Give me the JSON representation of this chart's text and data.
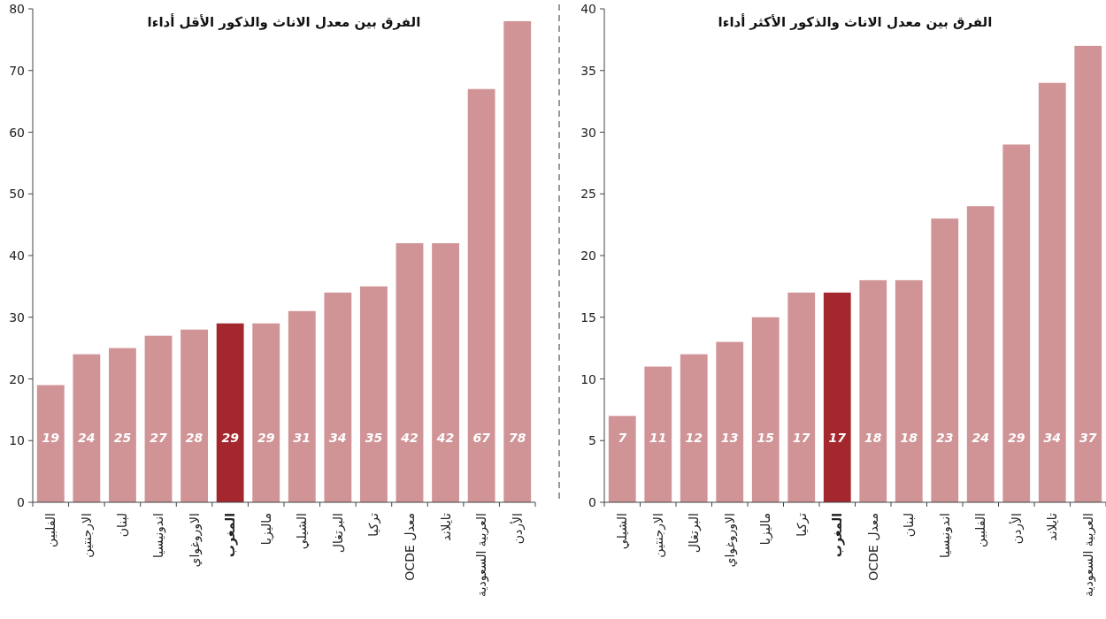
{
  "chart_data": [
    {
      "type": "bar",
      "title": "الفرق بين معدل الاناث والذكور الأقل أداءا",
      "categories": [
        "الفلبين",
        "الارجنتين",
        "لبنان",
        "اندونيسيا",
        "الاوروغواي",
        "المغرب",
        "ماليزيا",
        "الشيلي",
        "البرتغال",
        "تركيا",
        "معدل OCDE",
        "تايلاند",
        "العربية السعودية",
        "الأردن"
      ],
      "values": [
        19,
        24,
        25,
        27,
        28,
        29,
        29,
        31,
        34,
        35,
        42,
        42,
        67,
        78
      ],
      "colors": [
        "#d09497",
        "#d09497",
        "#d09497",
        "#d09497",
        "#d09497",
        "#a4272e",
        "#d09497",
        "#d09497",
        "#d09497",
        "#d09497",
        "#d09497",
        "#d09497",
        "#d09497",
        "#d09497"
      ],
      "ylim": [
        0,
        80
      ],
      "yticks": [
        0,
        10,
        20,
        30,
        40,
        50,
        60,
        70,
        80
      ],
      "data_labels": true,
      "grid": false
    },
    {
      "type": "bar",
      "title": "الفرق بين معدل الاناث والذكور الأكثر أداءا",
      "categories": [
        "الشيلي",
        "الارجنتين",
        "البرتغال",
        "الاوروغواي",
        "ماليزيا",
        "تركيا",
        "المغرب",
        "معدل OCDE",
        "لبنان",
        "اندونيسيا",
        "الفلبين",
        "الأردن",
        "تايلاند",
        "العربية السعودية"
      ],
      "values": [
        7,
        11,
        12,
        13,
        15,
        17,
        17,
        18,
        18,
        23,
        24,
        29,
        34,
        37
      ],
      "colors": [
        "#d09497",
        "#d09497",
        "#d09497",
        "#d09497",
        "#d09497",
        "#d09497",
        "#a4272e",
        "#d09497",
        "#d09497",
        "#d09497",
        "#d09497",
        "#d09497",
        "#d09497",
        "#d09497"
      ],
      "ylim": [
        0,
        40
      ],
      "yticks": [
        0,
        5,
        10,
        15,
        20,
        25,
        30,
        35,
        40
      ],
      "data_labels": true,
      "grid": false
    }
  ]
}
